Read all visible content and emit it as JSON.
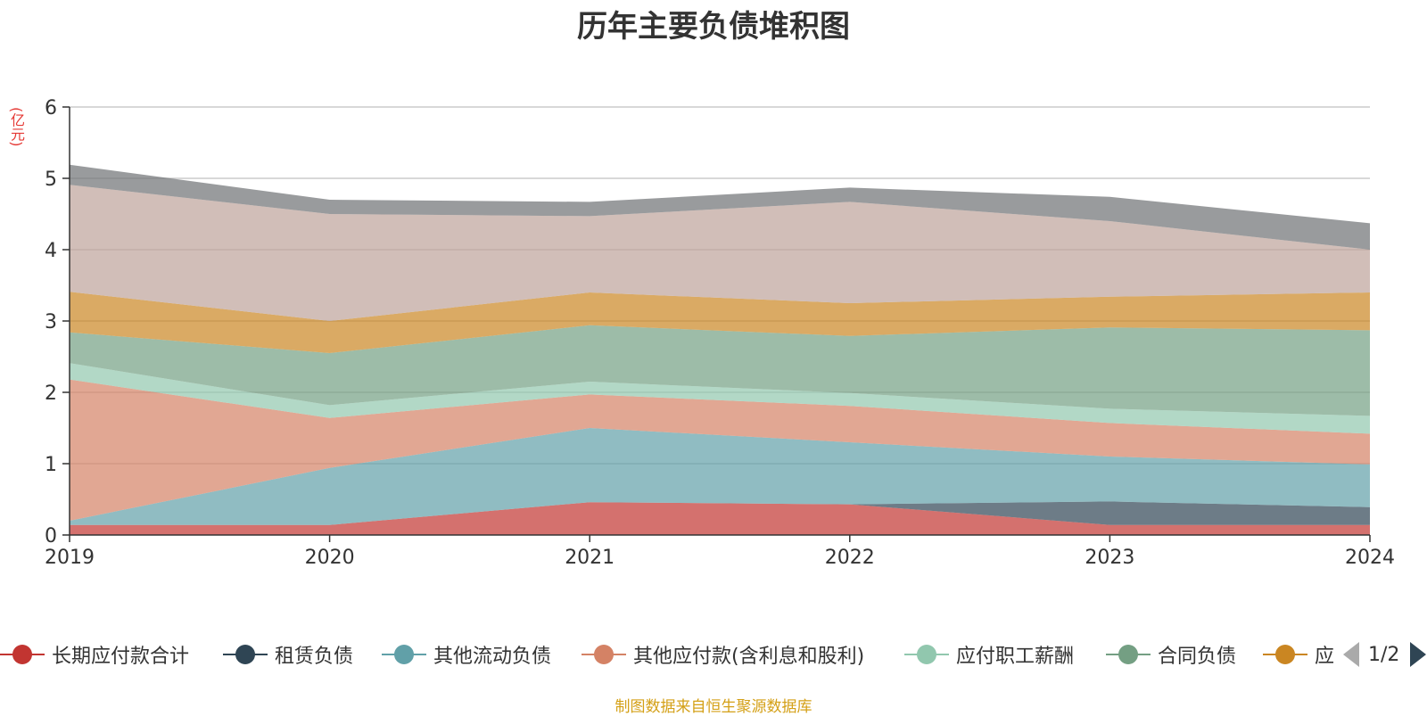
{
  "chart_data": {
    "type": "area",
    "stacked": true,
    "title": "历年主要负债堆积图",
    "unit_label": "(亿元)",
    "x": [
      "2019",
      "2020",
      "2021",
      "2022",
      "2023",
      "2024"
    ],
    "ylim": [
      0,
      6
    ],
    "yticks": [
      "0",
      "1",
      "2",
      "3",
      "4",
      "5",
      "6"
    ],
    "grid": true,
    "series": [
      {
        "name": "长期应付款合计",
        "color": "#c23531",
        "values": [
          0.14,
          0.14,
          0.46,
          0.43,
          0.14,
          0.14
        ]
      },
      {
        "name": "租赁负债",
        "color": "#2f4554",
        "values": [
          0.0,
          0.0,
          0.0,
          0.0,
          0.33,
          0.25
        ]
      },
      {
        "name": "其他流动负债",
        "color": "#61a0a8",
        "values": [
          0.06,
          0.8,
          1.04,
          0.87,
          0.63,
          0.6
        ]
      },
      {
        "name": "其他应付款(含利息和股利)",
        "color": "#d48265",
        "values": [
          1.98,
          0.7,
          0.47,
          0.51,
          0.47,
          0.43
        ]
      },
      {
        "name": "应付职工薪酬",
        "color": "#91c7ae",
        "values": [
          0.23,
          0.18,
          0.18,
          0.18,
          0.2,
          0.25
        ]
      },
      {
        "name": "合同负债",
        "color": "#749f83",
        "values": [
          0.43,
          0.73,
          0.79,
          0.8,
          1.14,
          1.2
        ]
      },
      {
        "name": "",
        "color": "#ca8622",
        "values": [
          0.57,
          0.45,
          0.46,
          0.46,
          0.43,
          0.53
        ]
      },
      {
        "name": "",
        "color": "#bda29a",
        "values": [
          1.5,
          1.5,
          1.07,
          1.42,
          1.06,
          0.6
        ]
      },
      {
        "name": "",
        "color": "#6e7074",
        "values": [
          0.28,
          0.2,
          0.2,
          0.2,
          0.34,
          0.37
        ]
      }
    ]
  },
  "legend": {
    "items": [
      "长期应付款合计",
      "租赁负债",
      "其他流动负债",
      "其他应付款(含利息和股利)",
      "应付职工薪酬",
      "合同负债",
      "应"
    ],
    "page_indicator": "1/2"
  },
  "footer": {
    "source_note": "制图数据来自恒生聚源数据库"
  }
}
